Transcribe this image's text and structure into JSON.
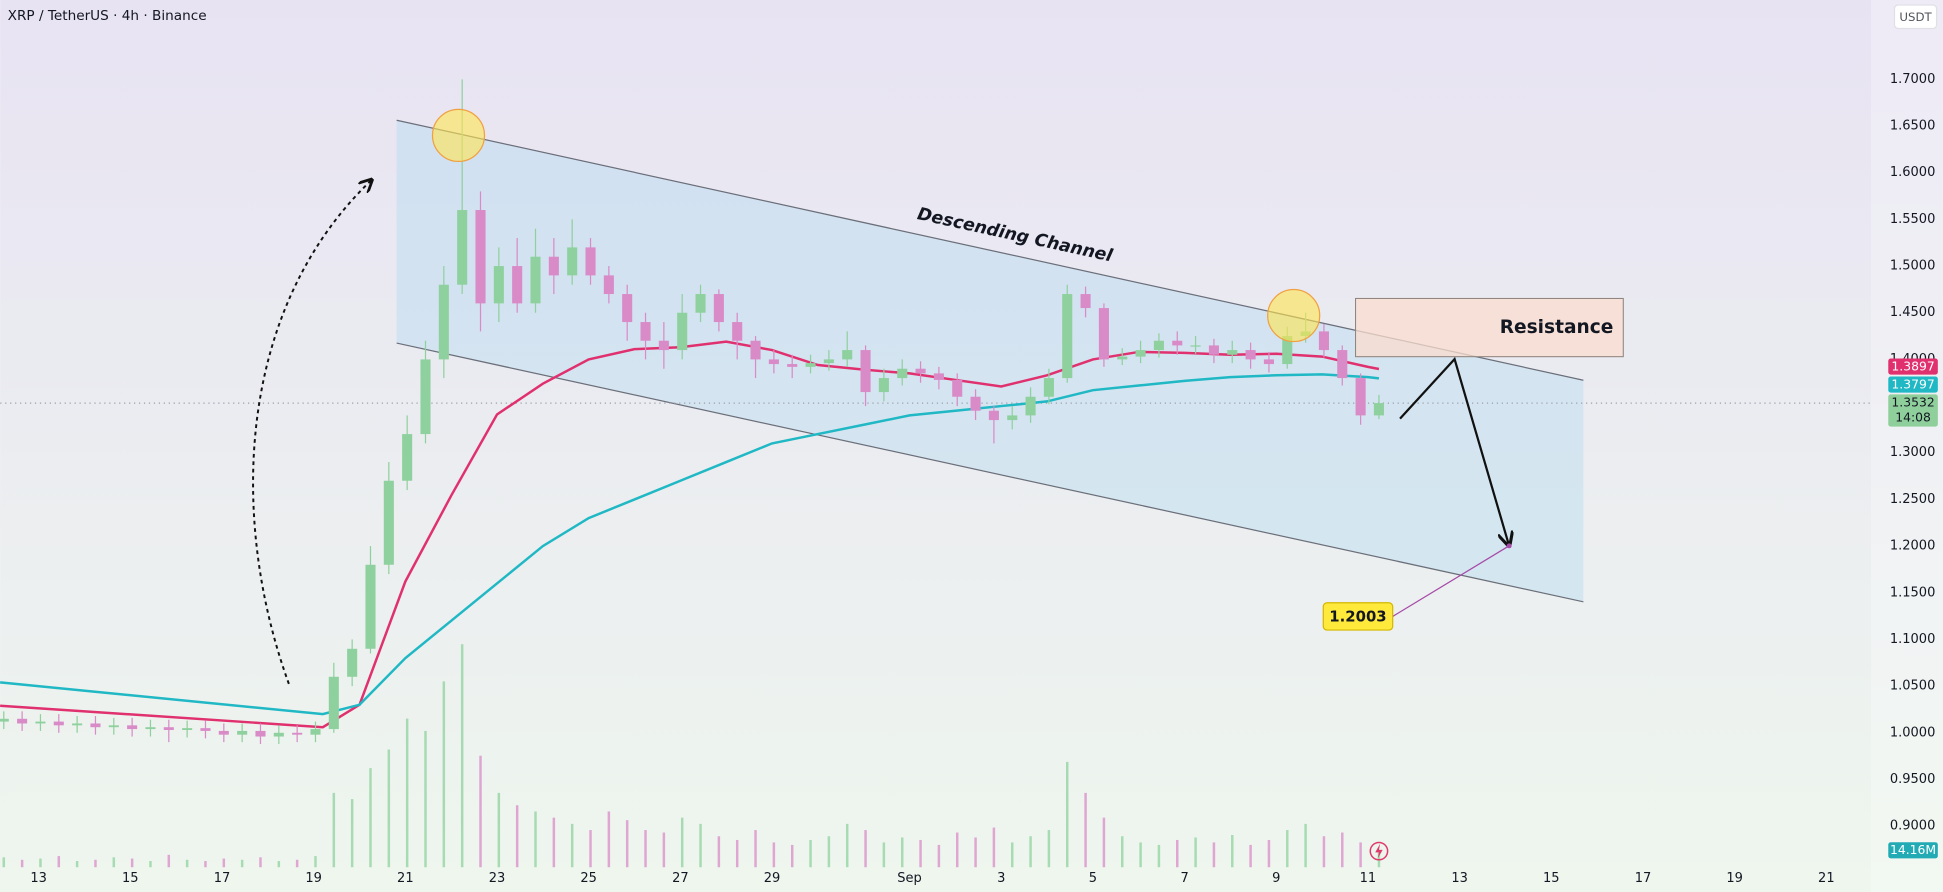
{
  "chart_data": {
    "type": "candlestick",
    "title": "XRP / TetherUS · 4h · Binance",
    "currency": "USDT",
    "xlim": [
      12.162,
      52.973
    ],
    "ylim": [
      0.856,
      1.785
    ],
    "grid": false,
    "up_color": "#8fd19e",
    "down_color": "#d98bc8",
    "xticks": [
      13,
      15,
      17,
      19,
      21,
      23,
      25,
      27,
      29,
      {
        "value": 32,
        "label": "Sep"
      },
      {
        "value": 34,
        "label": "3"
      },
      {
        "value": 36,
        "label": "5"
      },
      {
        "value": 38,
        "label": "7"
      },
      {
        "value": 40,
        "label": "9"
      },
      {
        "value": 42,
        "label": "11"
      },
      {
        "value": 44,
        "label": "13"
      },
      {
        "value": 46,
        "label": "15"
      },
      {
        "value": 48,
        "label": "17"
      },
      {
        "value": 50,
        "label": "19"
      },
      {
        "value": 52,
        "label": "21"
      }
    ],
    "yticks": [
      {
        "value": 0.9,
        "label": "0.9000"
      },
      {
        "value": 0.95,
        "label": "0.9500"
      },
      {
        "value": 1.0,
        "label": "1.0000"
      },
      {
        "value": 1.05,
        "label": "1.0500"
      },
      {
        "value": 1.1,
        "label": "1.1000"
      },
      {
        "value": 1.15,
        "label": "1.1500"
      },
      {
        "value": 1.2,
        "label": "1.2000"
      },
      {
        "value": 1.25,
        "label": "1.2500"
      },
      {
        "value": 1.3,
        "label": "1.3000"
      },
      {
        "value": 1.35,
        "label": "1.3500"
      },
      {
        "value": 1.4,
        "label": "1.4000"
      },
      {
        "value": 1.45,
        "label": "1.4500"
      },
      {
        "value": 1.5,
        "label": "1.5000"
      },
      {
        "value": 1.55,
        "label": "1.5500"
      },
      {
        "value": 1.6,
        "label": "1.6000"
      },
      {
        "value": 1.65,
        "label": "1.6500"
      },
      {
        "value": 1.7,
        "label": "1.7000"
      }
    ],
    "x": [
      12.24,
      12.64,
      13.04,
      13.44,
      13.84,
      14.24,
      14.64,
      15.04,
      15.44,
      15.84,
      16.24,
      16.64,
      17.04,
      17.44,
      17.84,
      18.24,
      18.64,
      19.04,
      19.44,
      19.84,
      20.24,
      20.64,
      21.04,
      21.44,
      21.84,
      22.24,
      22.64,
      23.04,
      23.44,
      23.84,
      24.24,
      24.64,
      25.04,
      25.44,
      25.84,
      26.24,
      26.64,
      27.04,
      27.44,
      27.84,
      28.24,
      28.64,
      29.04,
      29.44,
      29.84,
      30.24,
      30.64,
      31.04,
      31.44,
      31.84,
      32.24,
      32.64,
      33.04,
      33.44,
      33.84,
      34.24,
      34.64,
      35.04,
      35.44,
      35.84,
      36.24,
      36.64,
      37.04,
      37.44,
      37.84,
      38.24,
      38.64,
      39.04,
      39.44,
      39.84,
      40.24,
      40.64,
      41.04,
      41.44,
      41.84,
      42.24
    ],
    "open": [
      1.012,
      1.015,
      1.01,
      1.012,
      1.008,
      1.01,
      1.006,
      1.008,
      1.004,
      1.006,
      1.003,
      1.005,
      1.002,
      0.998,
      1.002,
      0.996,
      1.0,
      0.998,
      1.004,
      1.06,
      1.09,
      1.18,
      1.27,
      1.32,
      1.4,
      1.48,
      1.56,
      1.46,
      1.5,
      1.46,
      1.51,
      1.49,
      1.52,
      1.49,
      1.47,
      1.44,
      1.42,
      1.41,
      1.45,
      1.47,
      1.44,
      1.42,
      1.4,
      1.395,
      1.392,
      1.396,
      1.4,
      1.41,
      1.365,
      1.38,
      1.39,
      1.385,
      1.378,
      1.36,
      1.345,
      1.335,
      1.34,
      1.36,
      1.38,
      1.47,
      1.455,
      1.4,
      1.403,
      1.41,
      1.42,
      1.415,
      1.415,
      1.405,
      1.41,
      1.4,
      1.395,
      1.425,
      1.43,
      1.41,
      1.38,
      1.34
    ],
    "high": [
      1.023,
      1.023,
      1.02,
      1.02,
      1.018,
      1.018,
      1.016,
      1.016,
      1.014,
      1.014,
      1.013,
      1.013,
      1.01,
      1.01,
      1.01,
      1.008,
      1.008,
      1.012,
      1.075,
      1.1,
      1.2,
      1.29,
      1.34,
      1.42,
      1.5,
      1.7,
      1.58,
      1.52,
      1.53,
      1.54,
      1.53,
      1.55,
      1.53,
      1.5,
      1.48,
      1.45,
      1.44,
      1.47,
      1.48,
      1.475,
      1.45,
      1.425,
      1.41,
      1.405,
      1.405,
      1.41,
      1.43,
      1.415,
      1.39,
      1.4,
      1.398,
      1.392,
      1.385,
      1.368,
      1.35,
      1.35,
      1.37,
      1.39,
      1.48,
      1.478,
      1.46,
      1.412,
      1.42,
      1.428,
      1.43,
      1.425,
      1.422,
      1.42,
      1.418,
      1.408,
      1.435,
      1.45,
      1.438,
      1.415,
      1.385,
      1.362
    ],
    "low": [
      1.004,
      1.002,
      1.002,
      1.0,
      1.0,
      0.998,
      0.998,
      0.996,
      0.996,
      0.99,
      0.995,
      0.994,
      0.99,
      0.99,
      0.988,
      0.988,
      0.99,
      0.99,
      1.0,
      1.05,
      1.085,
      1.17,
      1.26,
      1.31,
      1.38,
      1.47,
      1.43,
      1.44,
      1.45,
      1.45,
      1.47,
      1.48,
      1.48,
      1.46,
      1.42,
      1.4,
      1.39,
      1.4,
      1.44,
      1.43,
      1.4,
      1.38,
      1.385,
      1.38,
      1.385,
      1.388,
      1.392,
      1.35,
      1.355,
      1.372,
      1.375,
      1.368,
      1.35,
      1.335,
      1.31,
      1.325,
      1.332,
      1.352,
      1.375,
      1.445,
      1.392,
      1.394,
      1.396,
      1.402,
      1.405,
      1.406,
      1.396,
      1.396,
      1.39,
      1.386,
      1.39,
      1.418,
      1.402,
      1.372,
      1.33,
      1.336
    ],
    "close": [
      1.015,
      1.01,
      1.012,
      1.008,
      1.01,
      1.006,
      1.008,
      1.004,
      1.006,
      1.003,
      1.005,
      1.002,
      0.998,
      1.002,
      0.996,
      1.0,
      0.998,
      1.004,
      1.06,
      1.09,
      1.18,
      1.27,
      1.32,
      1.4,
      1.48,
      1.56,
      1.46,
      1.5,
      1.46,
      1.51,
      1.49,
      1.52,
      1.49,
      1.47,
      1.44,
      1.42,
      1.41,
      1.45,
      1.47,
      1.44,
      1.42,
      1.4,
      1.395,
      1.392,
      1.396,
      1.4,
      1.41,
      1.365,
      1.38,
      1.39,
      1.385,
      1.378,
      1.36,
      1.345,
      1.335,
      1.34,
      1.36,
      1.38,
      1.47,
      1.455,
      1.4,
      1.403,
      1.41,
      1.42,
      1.415,
      1.415,
      1.405,
      1.41,
      1.4,
      1.395,
      1.425,
      1.43,
      1.41,
      1.38,
      1.34,
      1.3532
    ],
    "volume": [
      8,
      6,
      7,
      9,
      5,
      6,
      8,
      7,
      5,
      10,
      6,
      5,
      7,
      6,
      8,
      5,
      6,
      9,
      60,
      55,
      80,
      95,
      120,
      110,
      150,
      180,
      90,
      60,
      50,
      45,
      40,
      35,
      30,
      45,
      38,
      30,
      28,
      40,
      35,
      25,
      22,
      30,
      20,
      18,
      22,
      25,
      35,
      30,
      20,
      24,
      22,
      18,
      28,
      24,
      32,
      20,
      25,
      30,
      85,
      60,
      40,
      25,
      20,
      18,
      22,
      24,
      20,
      26,
      18,
      22,
      30,
      35,
      25,
      28,
      20,
      14.16
    ],
    "volume_label": {
      "value": 14.16,
      "label": "14.16M"
    },
    "moving_averages": [
      {
        "color": "#e0306e",
        "last": 1.3897,
        "x": [
          12.16,
          19.2,
          20,
          21,
          22,
          23,
          24,
          25,
          26,
          27,
          28,
          29,
          30,
          31,
          32,
          33,
          34,
          35,
          36,
          37,
          38,
          39,
          40,
          41,
          42,
          42.24
        ],
        "values": [
          1.029,
          1.006,
          1.03,
          1.162,
          1.254,
          1.341,
          1.374,
          1.4,
          1.411,
          1.413,
          1.419,
          1.41,
          1.394,
          1.389,
          1.385,
          1.378,
          1.371,
          1.383,
          1.4,
          1.408,
          1.407,
          1.405,
          1.406,
          1.403,
          1.392,
          1.3897
        ]
      },
      {
        "color": "#1fb8c4",
        "last": 1.3797,
        "x": [
          12.16,
          19.2,
          20,
          21,
          22,
          23,
          24,
          25,
          26,
          27,
          28,
          29,
          30,
          31,
          32,
          33,
          34,
          35,
          36,
          37,
          38,
          39,
          40,
          41,
          42,
          42.24
        ],
        "values": [
          1.054,
          1.02,
          1.03,
          1.08,
          1.12,
          1.16,
          1.2,
          1.23,
          1.25,
          1.27,
          1.29,
          1.31,
          1.32,
          1.33,
          1.34,
          1.345,
          1.35,
          1.355,
          1.367,
          1.372,
          1.377,
          1.381,
          1.383,
          1.384,
          1.381,
          1.3797
        ]
      }
    ],
    "last_price": 1.3532,
    "countdown": "14:08",
    "channel": {
      "label": "Descending Channel",
      "x": [
        20.81,
        46.7
      ],
      "upper": [
        1.6562,
        1.3777
      ],
      "lower": [
        1.4175,
        1.1403
      ]
    },
    "resistance": {
      "label": "Resistance",
      "x": [
        41.73,
        47.57
      ],
      "y": [
        1.4029,
        1.4653
      ]
    },
    "highlights": [
      {
        "x": 22.16,
        "y": 1.64
      },
      {
        "x": 40.38,
        "y": 1.447
      }
    ],
    "projection": {
      "x": [
        42.7,
        43.89,
        45.08
      ],
      "y": [
        1.3366,
        1.4003,
        1.2003
      ]
    },
    "target": 1.2003
  }
}
